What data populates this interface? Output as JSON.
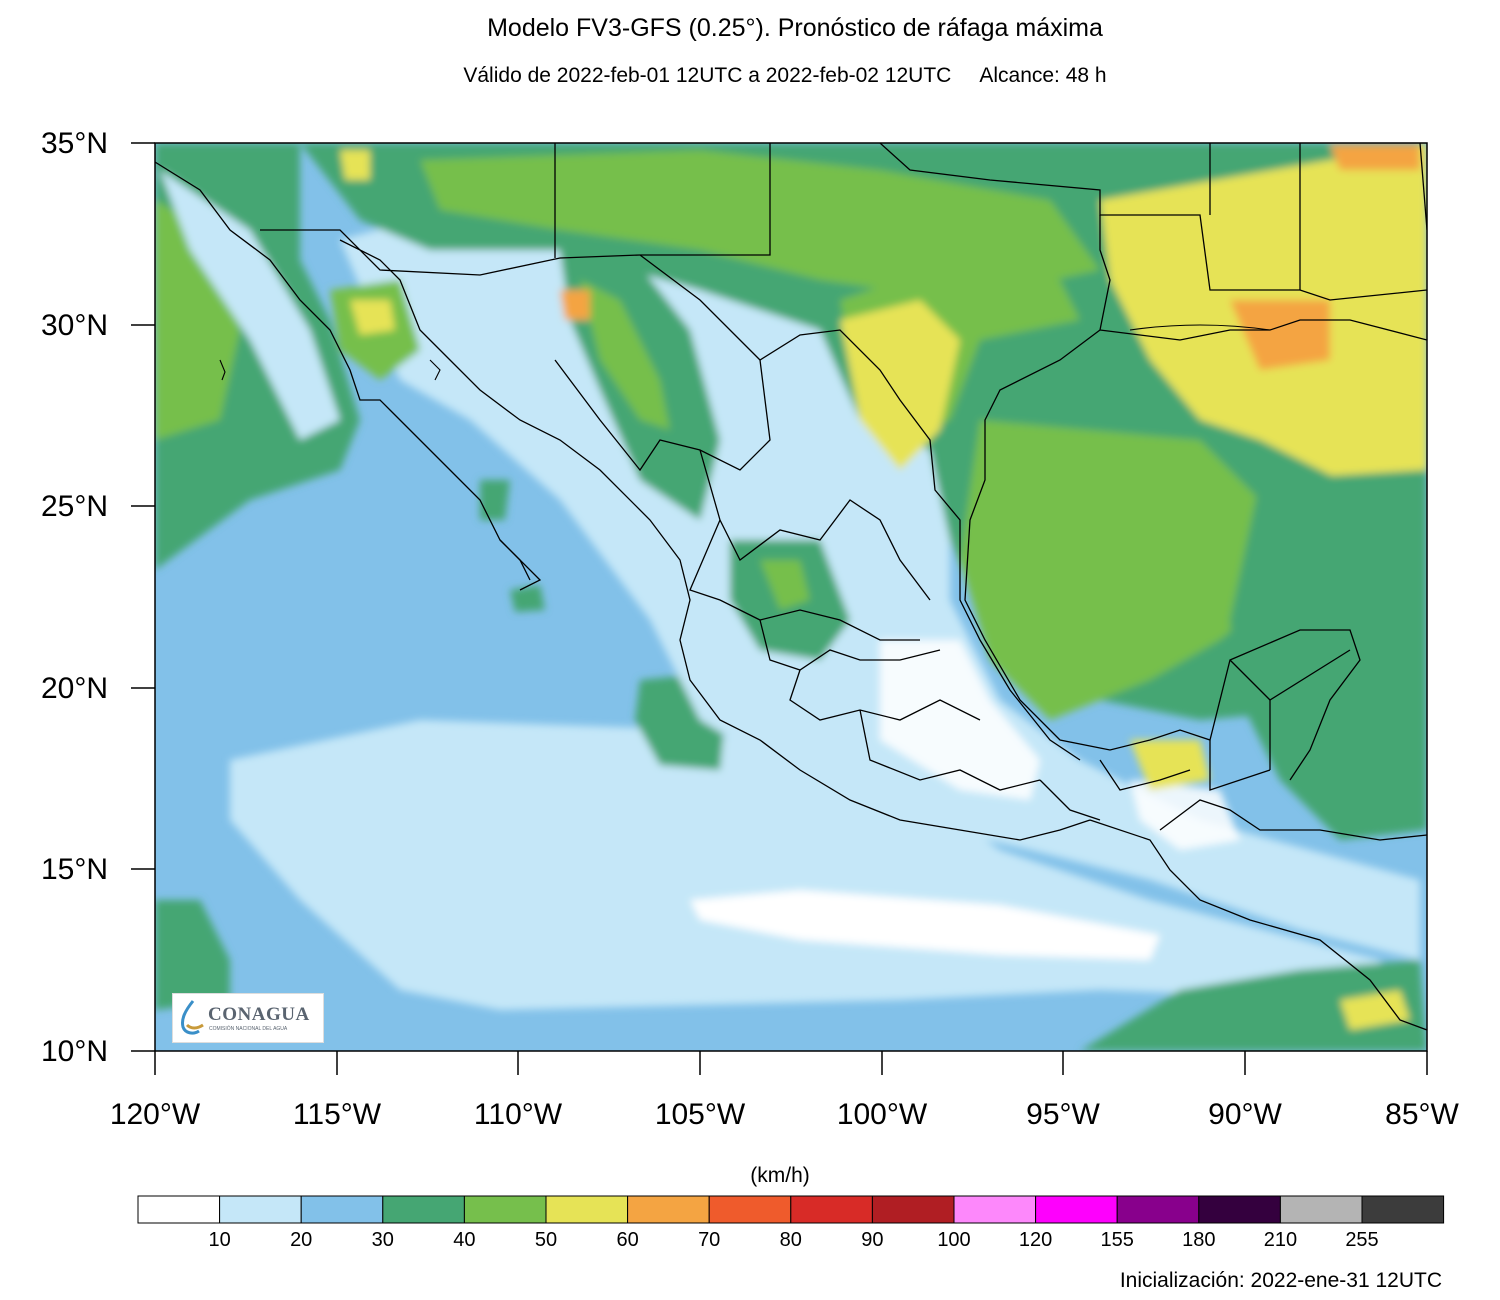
{
  "header": {
    "title": "Modelo FV3-GFS (0.25°). Pronóstico de ráfaga máxima",
    "valid": "Válido de 2022-feb-01 12UTC a 2022-feb-02 12UTC",
    "lead": "Alcance: 48 h"
  },
  "map": {
    "latitude_labels": [
      "35°N",
      "30°N",
      "25°N",
      "20°N",
      "15°N",
      "10°N"
    ],
    "longitude_labels": [
      "120°W",
      "115°W",
      "110°W",
      "105°W",
      "100°W",
      "95°W",
      "90°W",
      "85°W"
    ],
    "lat_range": [
      10,
      35
    ],
    "lon_range": [
      -120,
      -85
    ],
    "variable": "ráfaga máxima"
  },
  "colorbar": {
    "units": "(km/h)",
    "labels": [
      "10",
      "20",
      "30",
      "40",
      "50",
      "60",
      "70",
      "80",
      "90",
      "100",
      "120",
      "155",
      "180",
      "210",
      "255"
    ],
    "colors": [
      "#ffffff",
      "#c5e7f8",
      "#82c1e9",
      "#45a673",
      "#76bf4c",
      "#e6e356",
      "#f4a442",
      "#ef5b2c",
      "#d82b27",
      "#b01e23",
      "#fd88fb",
      "#fe00fd",
      "#88008c",
      "#34003e",
      "#b4b4b4",
      "#3c3c3c"
    ]
  },
  "logo": {
    "text": "CONAGUA",
    "subtext": "COMISIÓN NACIONAL DEL AGUA"
  },
  "footer": {
    "init": "Inicialización: 2022-ene-31 12UTC"
  }
}
